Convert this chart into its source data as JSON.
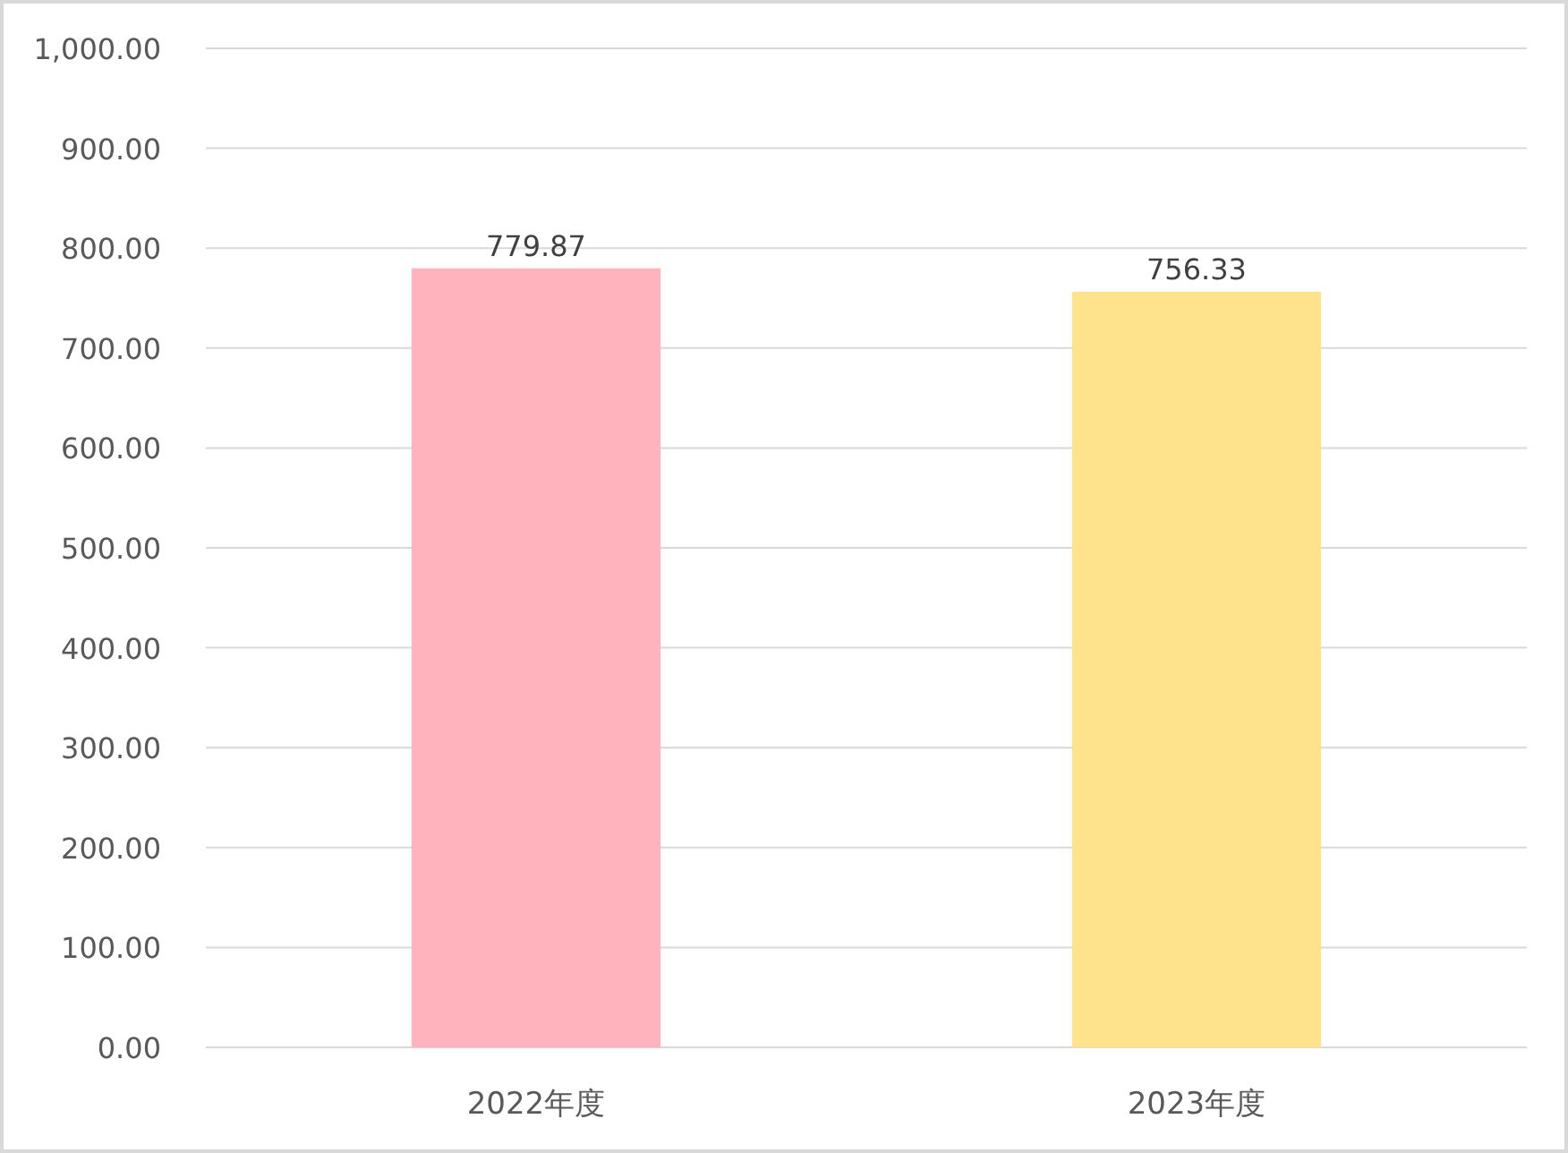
{
  "chart_data": {
    "type": "bar",
    "categories": [
      "2022年度",
      "2023年度"
    ],
    "values": [
      779.87,
      756.33
    ],
    "colors": [
      "#ffb3bd",
      "#ffe28c"
    ],
    "ylim": [
      0,
      1000
    ],
    "yticks": [
      {
        "value": 0,
        "label": "0.00"
      },
      {
        "value": 100,
        "label": "100.00"
      },
      {
        "value": 200,
        "label": "200.00"
      },
      {
        "value": 300,
        "label": "300.00"
      },
      {
        "value": 400,
        "label": "400.00"
      },
      {
        "value": 500,
        "label": "500.00"
      },
      {
        "value": 600,
        "label": "600.00"
      },
      {
        "value": 700,
        "label": "700.00"
      },
      {
        "value": 800,
        "label": "800.00"
      },
      {
        "value": 900,
        "label": "900.00"
      },
      {
        "value": 1000,
        "label": "1,000.00"
      }
    ],
    "grid": "y",
    "data_labels": true
  }
}
